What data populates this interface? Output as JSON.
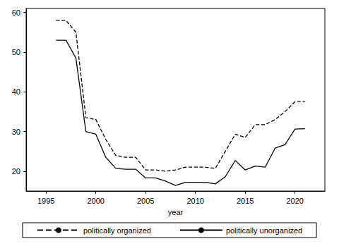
{
  "chart_data": {
    "type": "line",
    "x_label": "year",
    "x": [
      1996,
      1997,
      1998,
      1999,
      2000,
      2001,
      2002,
      2003,
      2004,
      2005,
      2006,
      2007,
      2008,
      2009,
      2010,
      2011,
      2012,
      2013,
      2014,
      2015,
      2016,
      2017,
      2018,
      2019,
      2020,
      2021
    ],
    "series": [
      {
        "name": "politically organized",
        "color": "#000000",
        "line_style": "dashed",
        "values": [
          58,
          58,
          55,
          33.5,
          33,
          28,
          24,
          23.5,
          23.5,
          20.3,
          20.3,
          20,
          20.3,
          21,
          21,
          21,
          20.7,
          25,
          29.3,
          28.5,
          31.7,
          31.7,
          33,
          35,
          37.5,
          37.5
        ]
      },
      {
        "name": "politically unorganized",
        "color": "#000000",
        "line_style": "solid",
        "values": [
          53,
          53,
          48.5,
          30,
          29.3,
          23.5,
          20.7,
          20.5,
          20.5,
          18.3,
          18.3,
          17.5,
          16.4,
          17.2,
          17.2,
          17.2,
          16.8,
          18.6,
          22.7,
          20.3,
          21.3,
          21,
          25.8,
          26.7,
          30.6,
          30.7
        ]
      }
    ],
    "xlim": [
      1993,
      2023
    ],
    "xticks": [
      1995,
      2000,
      2005,
      2010,
      2015,
      2020
    ],
    "ylim": [
      15,
      61
    ],
    "yticks": [
      20,
      30,
      40,
      50,
      60
    ],
    "grid": false,
    "legend": "bottom"
  }
}
